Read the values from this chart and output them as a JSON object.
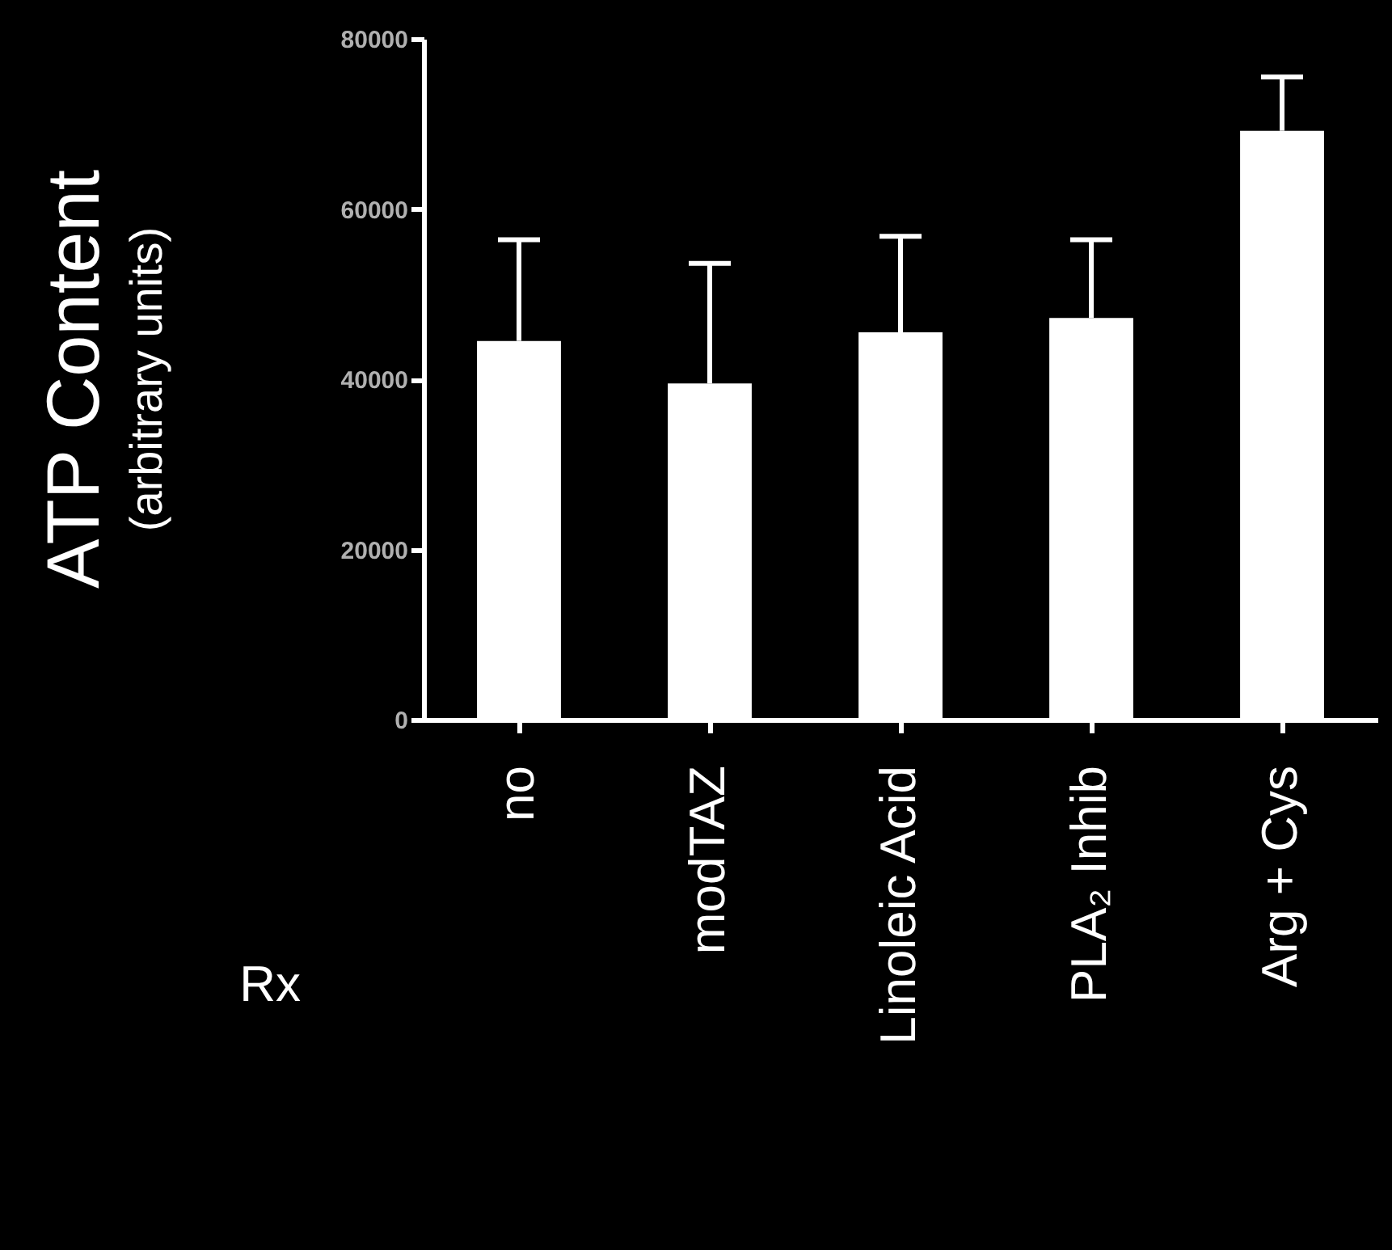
{
  "chart_data": {
    "type": "bar",
    "categories": [
      "no",
      "modTAZ",
      "Linoleic Acid",
      "PLA₂ Inhib",
      "Arg + Cys"
    ],
    "values": [
      44500,
      39500,
      45500,
      47200,
      69200
    ],
    "errors": [
      [
        44500,
        56400
      ],
      [
        39500,
        53600
      ],
      [
        45500,
        56800
      ],
      [
        47200,
        56400
      ],
      [
        69200,
        75500
      ]
    ],
    "color": "#ffffff",
    "ylim": [
      0,
      80000
    ],
    "yticks": [
      0,
      20000,
      40000,
      60000,
      80000
    ],
    "ylabel": "ATP Content\n(arbitrary units)",
    "xlabel": "Rx",
    "grid": false
  }
}
